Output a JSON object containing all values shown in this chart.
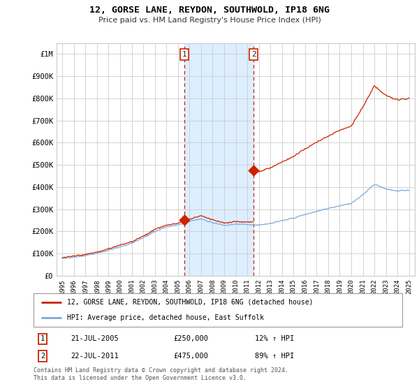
{
  "title": "12, GORSE LANE, REYDON, SOUTHWOLD, IP18 6NG",
  "subtitle": "Price paid vs. HM Land Registry's House Price Index (HPI)",
  "background_color": "#ffffff",
  "grid_color": "#cccccc",
  "hpi_color": "#7aaadd",
  "price_color": "#cc2200",
  "sale1_date_num": 2005.55,
  "sale1_price": 250000,
  "sale1_label": "1",
  "sale2_date_num": 2011.55,
  "sale2_price": 475000,
  "sale2_label": "2",
  "shade_color": "#ddeeff",
  "ylim_max": 1050000,
  "ylim_min": 0,
  "xlim_min": 1994.5,
  "xlim_max": 2025.5,
  "footer": "Contains HM Land Registry data © Crown copyright and database right 2024.\nThis data is licensed under the Open Government Licence v3.0.",
  "legend_line1": "12, GORSE LANE, REYDON, SOUTHWOLD, IP18 6NG (detached house)",
  "legend_line2": "HPI: Average price, detached house, East Suffolk",
  "table_row1_num": "1",
  "table_row1_date": "21-JUL-2005",
  "table_row1_price": "£250,000",
  "table_row1_hpi": "12% ↑ HPI",
  "table_row2_num": "2",
  "table_row2_date": "22-JUL-2011",
  "table_row2_price": "£475,000",
  "table_row2_hpi": "89% ↑ HPI",
  "yticks": [
    0,
    100000,
    200000,
    300000,
    400000,
    500000,
    600000,
    700000,
    800000,
    900000,
    1000000
  ],
  "ytick_labels": [
    "£0",
    "£100K",
    "£200K",
    "£300K",
    "£400K",
    "£500K",
    "£600K",
    "£700K",
    "£800K",
    "£900K",
    "£1M"
  ],
  "xticks": [
    1995,
    1996,
    1997,
    1998,
    1999,
    2000,
    2001,
    2002,
    2003,
    2004,
    2005,
    2006,
    2007,
    2008,
    2009,
    2010,
    2011,
    2012,
    2013,
    2014,
    2015,
    2016,
    2017,
    2018,
    2019,
    2020,
    2021,
    2022,
    2023,
    2024,
    2025
  ]
}
